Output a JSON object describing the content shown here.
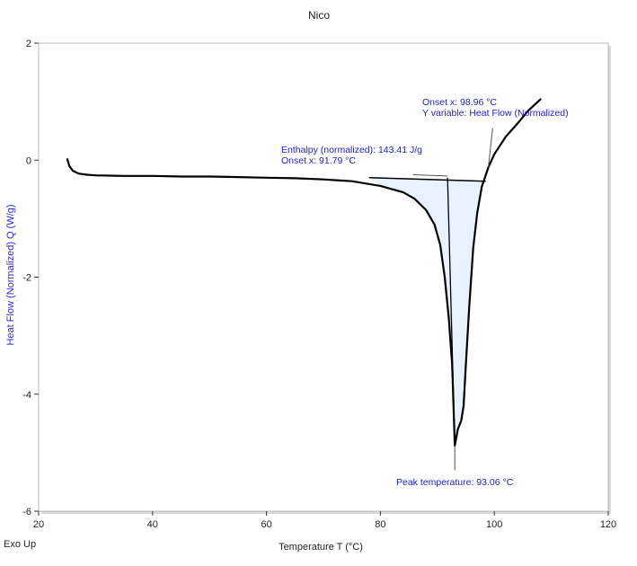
{
  "colors": {
    "curve": "#000000",
    "annotation_text": "#2020c0",
    "ylabel": "#2a2ad0",
    "fill": "#e8f2ff",
    "frame": "#b8b8b8"
  },
  "corner_label": "Exo Up",
  "chart_data": {
    "type": "line",
    "title": "Nico",
    "xlabel": "Temperature  T  (°C)",
    "ylabel": "Heat Flow (Normalized)  Q  (W/g)",
    "xlim": [
      20,
      120
    ],
    "ylim": [
      -6,
      2
    ],
    "x_ticks": [
      "20",
      "40",
      "60",
      "80",
      "100",
      "120"
    ],
    "y_ticks": [
      "2",
      "0",
      "-2",
      "-4",
      "-6"
    ],
    "grid": false,
    "series": [
      {
        "points": [
          [
            25.0,
            0.03
          ],
          [
            25.4,
            -0.1
          ],
          [
            26.0,
            -0.18
          ],
          [
            27.0,
            -0.23
          ],
          [
            28.5,
            -0.25
          ],
          [
            30,
            -0.26
          ],
          [
            35,
            -0.27
          ],
          [
            40,
            -0.27
          ],
          [
            45,
            -0.28
          ],
          [
            50,
            -0.28
          ],
          [
            55,
            -0.29
          ],
          [
            60,
            -0.3
          ],
          [
            65,
            -0.31
          ],
          [
            70,
            -0.33
          ],
          [
            75,
            -0.36
          ],
          [
            80,
            -0.44
          ],
          [
            84,
            -0.55
          ],
          [
            86,
            -0.66
          ],
          [
            88,
            -0.85
          ],
          [
            89.5,
            -1.1
          ],
          [
            90.5,
            -1.45
          ],
          [
            91.3,
            -2.0
          ],
          [
            92.0,
            -2.7
          ],
          [
            92.6,
            -3.5
          ],
          [
            93.06,
            -4.88
          ],
          [
            93.6,
            -4.6
          ],
          [
            94.2,
            -4.45
          ],
          [
            94.6,
            -4.2
          ],
          [
            95.0,
            -3.5
          ],
          [
            95.6,
            -2.5
          ],
          [
            96.3,
            -1.5
          ],
          [
            97.0,
            -0.9
          ],
          [
            97.8,
            -0.45
          ],
          [
            98.4,
            -0.28
          ],
          [
            98.96,
            -0.12
          ],
          [
            100,
            0.1
          ],
          [
            102,
            0.4
          ],
          [
            104,
            0.62
          ],
          [
            106,
            0.85
          ],
          [
            108.2,
            1.05
          ]
        ]
      }
    ],
    "integration": {
      "start_x": 78,
      "end_x": 98.5,
      "baseline": [
        [
          78,
          -0.3
        ],
        [
          98.5,
          -0.36
        ]
      ]
    },
    "annotations": [
      {
        "lines": [
          "Enthalpy (normalized): 143.41 J/g",
          "Onset x: 91.79 °C"
        ],
        "leader": [
          [
            91.79,
            -0.27
          ],
          [
            85.7,
            -0.25
          ]
        ]
      },
      {
        "lines": [
          "Onset x: 98.96 °C",
          "Y variable: Heat Flow (Normalized)"
        ],
        "leader": [
          [
            98.96,
            -0.12
          ],
          [
            99.7,
            0.55
          ]
        ]
      },
      {
        "lines": [
          "Peak temperature: 93.06 °C"
        ],
        "leader": [
          [
            93.06,
            -4.88
          ],
          [
            93.06,
            -5.3
          ]
        ]
      }
    ],
    "extra_lines": [
      {
        "points": [
          [
            91.79,
            -0.3
          ],
          [
            93.06,
            -4.88
          ]
        ]
      }
    ]
  }
}
